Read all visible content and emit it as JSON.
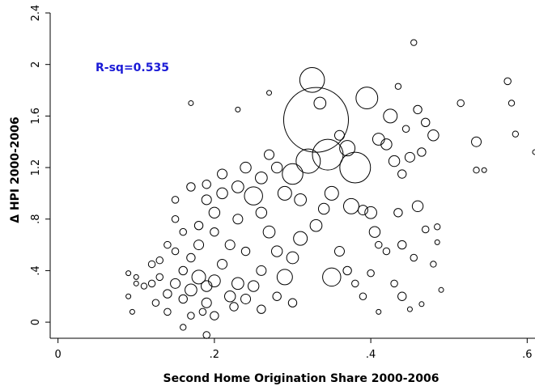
{
  "chart_data": {
    "type": "scatter",
    "x_label": "Second Home Origination Share 2000-2006",
    "y_label": "Δ HPI 2000-2006",
    "annotation": "R-sq=0.535",
    "annotation_color": "#1a1ad6",
    "color": "#000000",
    "xlim": [
      -0.01,
      0.61
    ],
    "ylim": [
      -0.125,
      2.4
    ],
    "xticks": [
      0,
      {
        "value": 0.2,
        "label": ".2"
      },
      {
        "value": 0.4,
        "label": ".4"
      },
      {
        "value": 0.6,
        "label": ".6"
      }
    ],
    "yticks": [
      0,
      {
        "value": 0.4,
        "label": ".4"
      },
      {
        "value": 0.8,
        "label": ".8"
      },
      1.2,
      1.6,
      2,
      2.4
    ],
    "x": [
      0.15,
      0.17,
      0.18,
      0.19,
      0.16,
      0.2,
      0.14,
      0.13,
      0.21,
      0.17,
      0.19,
      0.22,
      0.23,
      0.16,
      0.18,
      0.2,
      0.15,
      0.12,
      0.11,
      0.1,
      0.09,
      0.125,
      0.14,
      0.17,
      0.185,
      0.19,
      0.16,
      0.2,
      0.225,
      0.24,
      0.25,
      0.26,
      0.24,
      0.22,
      0.2,
      0.18,
      0.16,
      0.15,
      0.14,
      0.13,
      0.12,
      0.1,
      0.09,
      0.095,
      0.15,
      0.17,
      0.19,
      0.21,
      0.23,
      0.25,
      0.26,
      0.27,
      0.28,
      0.29,
      0.3,
      0.31,
      0.32,
      0.345,
      0.33,
      0.325,
      0.335,
      0.36,
      0.38,
      0.395,
      0.37,
      0.41,
      0.42,
      0.425,
      0.43,
      0.445,
      0.455,
      0.435,
      0.46,
      0.465,
      0.47,
      0.48,
      0.44,
      0.45,
      0.515,
      0.535,
      0.535,
      0.545,
      0.575,
      0.58,
      0.585,
      0.61,
      0.375,
      0.39,
      0.4,
      0.405,
      0.41,
      0.42,
      0.435,
      0.44,
      0.455,
      0.46,
      0.47,
      0.48,
      0.485,
      0.485,
      0.49,
      0.465,
      0.44,
      0.43,
      0.41,
      0.45,
      0.35,
      0.29,
      0.3,
      0.31,
      0.33,
      0.34,
      0.35,
      0.36,
      0.37,
      0.38,
      0.39,
      0.4,
      0.27,
      0.28,
      0.26,
      0.23,
      0.28,
      0.26,
      0.3,
      0.27,
      0.17,
      0.23,
      0.19,
      0.21,
      0.24
    ],
    "values": [
      0.3,
      0.25,
      0.35,
      0.28,
      0.4,
      0.32,
      0.22,
      0.35,
      0.45,
      0.5,
      0.15,
      0.2,
      0.3,
      0.18,
      0.6,
      0.7,
      0.55,
      0.3,
      0.28,
      0.35,
      0.38,
      0.15,
      0.08,
      0.05,
      0.08,
      -0.1,
      -0.04,
      0.05,
      0.12,
      0.18,
      0.28,
      0.4,
      0.55,
      0.6,
      0.85,
      0.75,
      0.7,
      0.8,
      0.6,
      0.48,
      0.45,
      0.3,
      0.2,
      0.08,
      0.95,
      1.05,
      0.95,
      1.0,
      1.05,
      0.98,
      1.12,
      1.3,
      1.2,
      1.0,
      1.15,
      0.95,
      1.25,
      1.3,
      1.57,
      1.88,
      1.7,
      1.45,
      1.2,
      1.74,
      1.35,
      1.42,
      1.38,
      1.6,
      1.25,
      1.5,
      2.17,
      1.83,
      1.65,
      1.32,
      1.55,
      1.45,
      1.15,
      1.28,
      1.7,
      1.4,
      1.18,
      1.18,
      1.87,
      1.7,
      1.46,
      1.32,
      0.9,
      0.87,
      0.85,
      0.7,
      0.6,
      0.55,
      0.85,
      0.6,
      0.5,
      0.9,
      0.72,
      0.45,
      0.74,
      0.62,
      0.25,
      0.14,
      0.2,
      0.3,
      0.08,
      0.1,
      0.35,
      0.35,
      0.5,
      0.65,
      0.75,
      0.88,
      1.0,
      0.55,
      0.4,
      0.3,
      0.2,
      0.38,
      0.7,
      0.55,
      0.85,
      0.8,
      0.2,
      0.1,
      0.15,
      1.78,
      1.7,
      1.65,
      1.07,
      1.15,
      1.2
    ],
    "sizes": [
      4,
      6,
      8,
      5,
      3,
      6,
      3,
      2,
      4,
      3,
      4,
      5,
      6,
      3,
      4,
      3,
      2,
      2,
      1.5,
      1,
      1,
      2,
      2,
      2,
      2,
      2,
      1.5,
      3,
      3,
      4,
      5,
      4,
      3,
      4,
      5,
      3,
      2,
      2,
      2,
      2,
      2,
      1,
      1,
      1,
      2,
      3,
      4,
      5,
      6,
      14,
      6,
      4,
      5,
      8,
      18,
      6,
      25,
      40,
      178,
      26,
      6,
      4,
      40,
      20,
      10,
      6,
      5,
      8,
      5,
      2,
      1.5,
      1.5,
      3,
      3,
      3,
      5,
      3,
      4,
      2,
      4,
      1.5,
      1,
      2,
      1.5,
      1.5,
      1,
      10,
      4,
      6,
      5,
      2,
      2,
      3,
      3,
      2,
      5,
      2,
      1.5,
      1.5,
      1,
      1,
      1,
      3,
      2,
      1,
      1,
      14,
      10,
      6,
      8,
      6,
      5,
      8,
      4,
      3,
      2,
      2,
      2,
      6,
      5,
      5,
      4,
      3,
      3,
      3,
      1,
      1,
      1,
      3,
      4,
      5
    ]
  }
}
